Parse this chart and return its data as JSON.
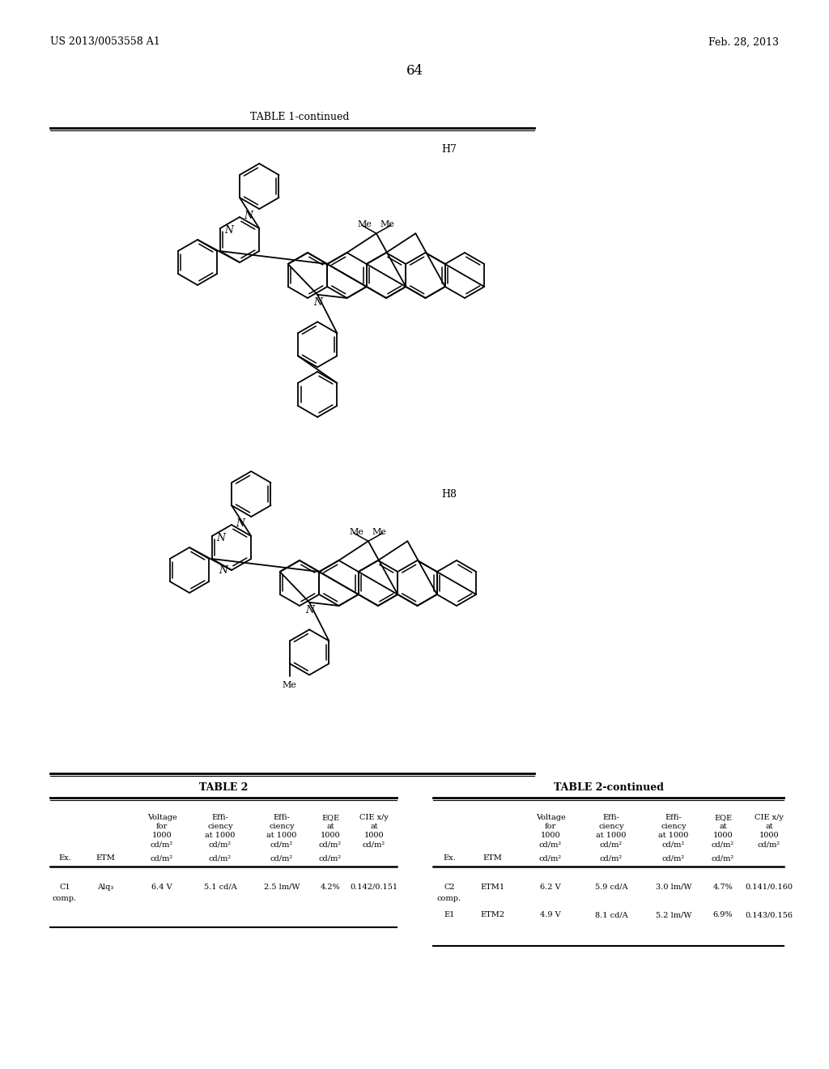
{
  "page_number": "64",
  "patent_number": "US 2013/0053558 A1",
  "patent_date": "Feb. 28, 2013",
  "table1_title": "TABLE 1-continued",
  "compound_h7": "H7",
  "compound_h8": "H8",
  "table2_title": "TABLE 2",
  "table2cont_title": "TABLE 2-continued",
  "bg_color": "#ffffff",
  "text_color": "#000000"
}
